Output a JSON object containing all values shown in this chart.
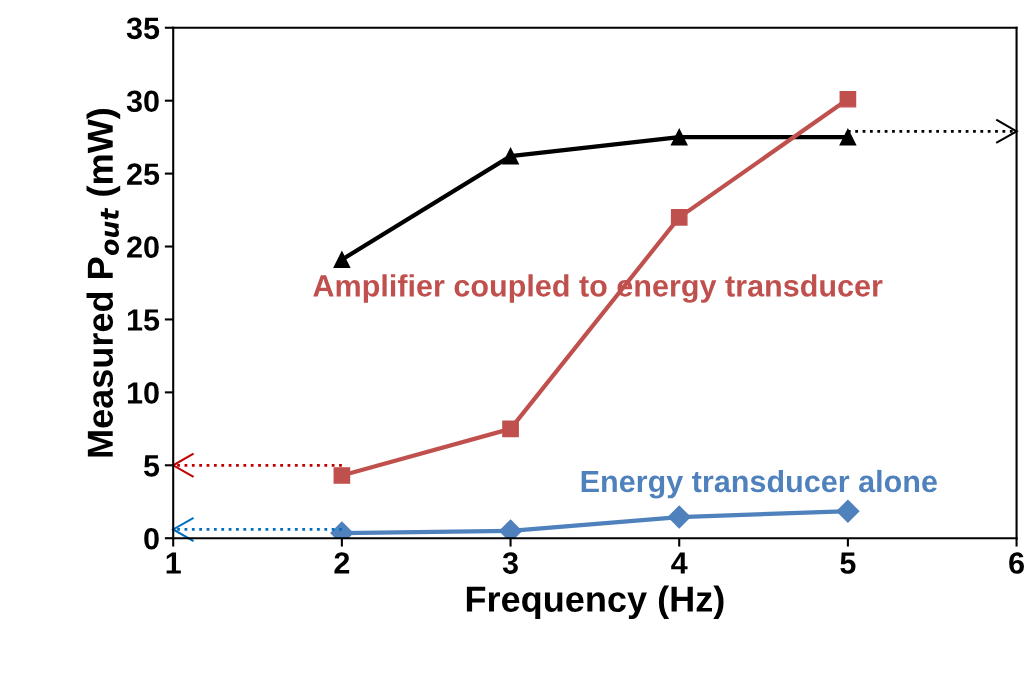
{
  "chart_data": {
    "type": "line",
    "xlabel": "Frequency (Hz)",
    "ylabel": "Measured P$_{out}$ (mW)",
    "xlim": [
      1,
      6
    ],
    "xticks": [
      1,
      2,
      3,
      4,
      5,
      6
    ],
    "ylim": [
      0,
      35
    ],
    "yticks": [
      0,
      5,
      10,
      15,
      20,
      25,
      30,
      35
    ],
    "grid": false,
    "legend": false,
    "series": [
      {
        "color": "#000000",
        "marker": "triangle",
        "line_style": "solid",
        "x": [
          2,
          3,
          4,
          5
        ],
        "values": [
          19.1,
          26.2,
          27.5,
          27.5
        ]
      },
      {
        "name": "Amplifier coupled to energy transducer",
        "color": "#c0504d",
        "marker": "square",
        "line_style": "solid",
        "x": [
          2,
          3,
          4,
          5
        ],
        "values": [
          4.3,
          7.5,
          22.0,
          30.1
        ]
      },
      {
        "name": "Energy transducer alone",
        "color": "#4f81bd",
        "marker": "diamond",
        "line_style": "solid",
        "x": [
          2,
          3,
          4,
          5
        ],
        "values": [
          0.35,
          0.5,
          1.45,
          1.85
        ]
      },
      {
        "color": "#000000",
        "marker": "none",
        "line_style": "dotted",
        "x": [
          5,
          6
        ],
        "values": [
          27.9,
          27.9
        ]
      },
      {
        "color": "#c00000",
        "marker": "none",
        "line_style": "dotted",
        "x": [
          2,
          1
        ],
        "values": [
          5,
          5
        ]
      },
      {
        "color": "#0070c0",
        "marker": "none",
        "line_style": "dotted",
        "x": [
          2,
          1
        ],
        "values": [
          0.6,
          0.6
        ]
      }
    ]
  }
}
